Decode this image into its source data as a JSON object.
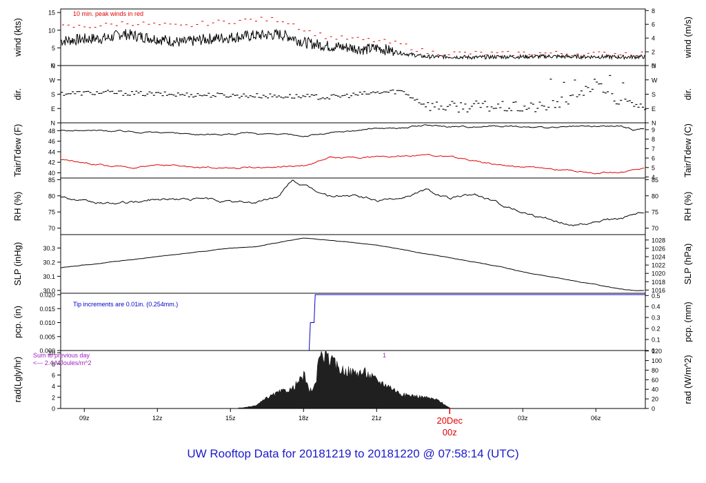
{
  "title": "UW Rooftop Data for 20181219  to  20181220 @ 07:58:14  (UTC)",
  "colors": {
    "axis": "#000000",
    "red": "#e00000",
    "blue": "#0000cc",
    "purple": "#a020c0",
    "title": "#1a1acc",
    "date": "#e00000",
    "fill": "#202020"
  },
  "xaxis": {
    "ticks": [
      {
        "label": "09z",
        "h": 0.97
      },
      {
        "label": "12z",
        "h": 3.97
      },
      {
        "label": "15z",
        "h": 6.97
      },
      {
        "label": "18z",
        "h": 9.97
      },
      {
        "label": "21z",
        "h": 12.97
      },
      {
        "label": "03z",
        "h": 18.97
      },
      {
        "label": "06z",
        "h": 21.97
      }
    ],
    "date_tick": {
      "label1": "20Dec",
      "label2": "00z",
      "h": 15.97
    },
    "range_hours": [
      0,
      24
    ]
  },
  "chart_data": [
    {
      "id": "wind",
      "type": "line",
      "ylabel_left": "wind (kts)",
      "ylabel_right": "wind (m/s)",
      "ylim": [
        0,
        16
      ],
      "left_ticks": [
        0,
        5,
        10,
        15
      ],
      "right_ticks": [
        0,
        2,
        4,
        6,
        8
      ],
      "right_to_left_factor": 1.9438,
      "annotation": "10 min. peak winds in red",
      "series": [
        {
          "name": "",
          "color": "black",
          "x": [
            0,
            1,
            2,
            2.5,
            3,
            4,
            5,
            6,
            7,
            8,
            9,
            9.5,
            10,
            11,
            12,
            12.5,
            13,
            14,
            15,
            16,
            17,
            18,
            19,
            20,
            21,
            22,
            23,
            24
          ],
          "values": [
            7,
            7.5,
            7.8,
            9,
            8.5,
            7.5,
            6.5,
            7.5,
            8,
            8.5,
            8.8,
            8,
            6.5,
            5.5,
            5,
            4.5,
            5,
            3.5,
            2.5,
            2.5,
            2.3,
            2.5,
            2.5,
            2.6,
            2.5,
            2.5,
            2.4,
            2.5
          ]
        },
        {
          "name": "10 min. peak winds in red",
          "color": "red",
          "x": [
            0,
            1,
            2,
            2.5,
            3,
            4,
            5,
            6,
            7,
            8,
            9,
            9.5,
            10,
            11,
            12,
            13,
            14,
            15,
            16,
            17,
            18,
            19,
            20,
            21,
            22,
            23,
            24
          ],
          "values": [
            11,
            11,
            11.5,
            12,
            12,
            11.5,
            11,
            12,
            12.5,
            13,
            13,
            12,
            10,
            8,
            7.5,
            7,
            6,
            3.8,
            3.5,
            3.5,
            3.3,
            3.5,
            3.5,
            3.4,
            3.3,
            3.5,
            3.4
          ]
        }
      ]
    },
    {
      "id": "dir",
      "type": "scatter",
      "ylabel_left": "dir.",
      "ylabel_right": "dir.",
      "ylim": [
        0,
        360
      ],
      "left_ticks": [
        {
          "label": "N",
          "v": 0
        },
        {
          "label": "E",
          "v": 90
        },
        {
          "label": "S",
          "v": 180
        },
        {
          "label": "W",
          "v": 270
        },
        {
          "label": "N",
          "v": 360
        }
      ],
      "series": [
        {
          "name": "",
          "x": [
            0,
            2,
            4,
            6,
            8,
            10,
            11,
            12,
            13,
            14,
            15,
            16,
            17,
            18,
            19,
            20,
            21,
            22,
            23,
            24
          ],
          "values": [
            185,
            190,
            180,
            175,
            170,
            165,
            160,
            175,
            190,
            200,
            110,
            100,
            105,
            100,
            95,
            100,
            150,
            250,
            120,
            100
          ]
        }
      ]
    },
    {
      "id": "temp",
      "type": "line",
      "ylabel_left": "Tair/Tdew (F)",
      "ylabel_right": "Tair/Tdew (C)",
      "ylim": [
        39,
        49.5
      ],
      "left_ticks": [
        40,
        42,
        44,
        46,
        48
      ],
      "right_ticks": [
        4,
        5,
        6,
        7,
        8,
        9
      ],
      "right_to_left_factor": 1.8,
      "right_offset": 32,
      "series": [
        {
          "name": "",
          "color": "black",
          "x": [
            0,
            2,
            4,
            6,
            8,
            10,
            12,
            13,
            14,
            15,
            16,
            17,
            18,
            19,
            20,
            21,
            22,
            23,
            23.5,
            24
          ],
          "values": [
            48,
            48,
            47.7,
            47.3,
            47.5,
            47,
            48,
            48.5,
            48.5,
            49,
            48.8,
            48.8,
            49,
            48.7,
            48.5,
            48.7,
            48.8,
            48.9,
            48.2,
            48.5
          ]
        },
        {
          "name": "",
          "color": "red",
          "x": [
            0,
            1,
            2,
            3,
            4,
            6,
            8,
            10,
            11,
            12,
            13,
            14,
            15,
            16,
            17,
            18,
            19,
            20,
            21,
            22,
            23,
            24
          ],
          "values": [
            42.5,
            42,
            41.2,
            41,
            41.5,
            41,
            41,
            41.3,
            42.8,
            43,
            43,
            43.3,
            43.5,
            43,
            42.3,
            41.5,
            41,
            40.8,
            40.5,
            40,
            40.2,
            41
          ]
        }
      ]
    },
    {
      "id": "rh",
      "type": "line",
      "ylabel_left": "RH (%)",
      "ylabel_right": "RH (%)",
      "ylim": [
        68,
        85.5
      ],
      "left_ticks": [
        70,
        75,
        80,
        85
      ],
      "right_ticks": [
        70,
        75,
        80,
        85
      ],
      "series": [
        {
          "name": "",
          "color": "black",
          "x": [
            0,
            1,
            2,
            3,
            4,
            5,
            6,
            7,
            8,
            9,
            9.5,
            10,
            11,
            12,
            13,
            14,
            15,
            16,
            17,
            18,
            19,
            20,
            21,
            22,
            23,
            24
          ],
          "values": [
            80,
            78,
            77.5,
            78,
            79,
            79,
            79,
            78,
            78,
            80,
            85,
            83,
            80,
            80,
            78.5,
            79.5,
            82,
            79,
            80.5,
            77.5,
            75,
            73,
            71,
            72,
            73,
            75
          ]
        }
      ]
    },
    {
      "id": "slp",
      "type": "line",
      "ylabel_left": "SLP (inHg)",
      "ylabel_right": "SLP (hPa)",
      "ylim": [
        29.98,
        30.395
      ],
      "left_ticks": [
        30.0,
        30.1,
        30.2,
        30.3
      ],
      "left_tick_labels": [
        "30.0",
        "30.1",
        "30.2",
        "30.3"
      ],
      "right_ticks": [
        1016,
        1018,
        1020,
        1022,
        1024,
        1026,
        1028
      ],
      "right_to_left_factor": 0.02953,
      "series": [
        {
          "name": "",
          "color": "black",
          "x": [
            0,
            1,
            2,
            3,
            4,
            5,
            6,
            7,
            8,
            9,
            10,
            11,
            12,
            13,
            14,
            15,
            16,
            17,
            18,
            19,
            20,
            21,
            22,
            23,
            23.5,
            24
          ],
          "values": [
            30.16,
            30.18,
            30.2,
            30.22,
            30.24,
            30.26,
            30.28,
            30.3,
            30.31,
            30.34,
            30.37,
            30.355,
            30.34,
            30.32,
            30.29,
            30.26,
            30.23,
            30.2,
            30.17,
            30.13,
            30.1,
            30.07,
            30.04,
            30.01,
            30.0,
            30.0
          ]
        }
      ]
    },
    {
      "id": "pcp",
      "type": "line",
      "ylabel_left": "pcp. (in)",
      "ylabel_right": "pcp. (mm)",
      "ylim": [
        0,
        0.0205
      ],
      "left_ticks": [
        0.0,
        0.005,
        0.01,
        0.015,
        0.02
      ],
      "left_tick_labels": [
        "0.000",
        "0.005",
        "0.010",
        "0.015",
        "0.020"
      ],
      "right_ticks": [
        0,
        0.1,
        0.2,
        0.3,
        0.4,
        0.5
      ],
      "right_to_left_factor": 0.03937,
      "annotation": "Tip increments are 0.01in. (0.254mm.)",
      "series": [
        {
          "name": "",
          "color": "blue",
          "x": [
            0,
            10.2,
            10.25,
            10.4,
            10.45,
            24
          ],
          "values": [
            0,
            0,
            0.01,
            0.01,
            0.02,
            0.02
          ]
        }
      ]
    },
    {
      "id": "rad",
      "type": "area",
      "ylabel_left": "rad(Lgly/hr)",
      "ylabel_right": "rad (W/m^2)",
      "ylim": [
        0,
        10.4
      ],
      "left_ticks": [
        0,
        2,
        4,
        6,
        8,
        10
      ],
      "right_ticks": [
        0,
        20,
        40,
        60,
        80,
        100,
        120
      ],
      "right_to_left_factor": 0.08598,
      "annotation_line1": "Sum to previous day",
      "annotation_line2": "<--- 2.4 MJoules/m^2",
      "annotation_marker": "1",
      "series": [
        {
          "name": "",
          "x": [
            7.3,
            8,
            8.5,
            9,
            9.5,
            10,
            10.2,
            10.5,
            10.6,
            11,
            11.5,
            12,
            12.5,
            13,
            13.5,
            14,
            14.5,
            15,
            15.5,
            16
          ],
          "values": [
            0,
            0.5,
            2,
            3,
            3.5,
            6,
            3,
            4.5,
            10,
            9,
            7,
            6.5,
            6.5,
            5,
            4,
            2.5,
            2.3,
            2,
            1.5,
            0
          ]
        }
      ]
    }
  ]
}
